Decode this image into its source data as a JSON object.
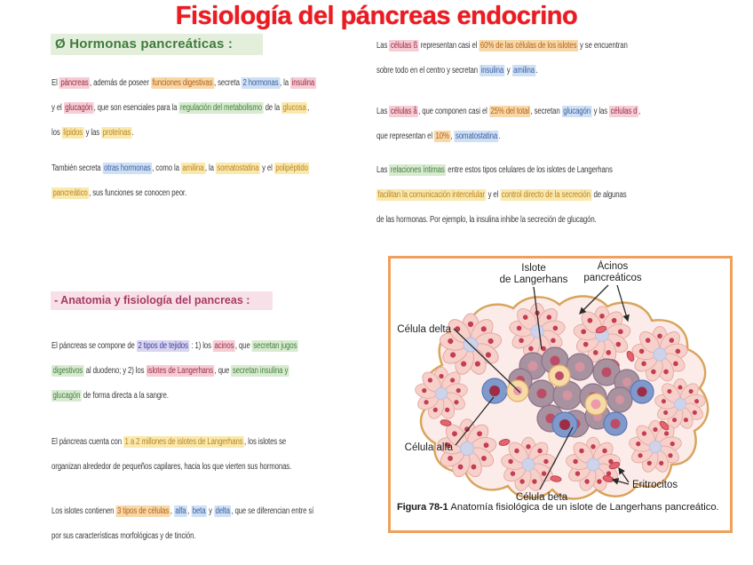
{
  "page": {
    "title": "Fisiología del páncreas endocrino"
  },
  "colors": {
    "title_red": "#ec1b22",
    "figure_border_orange": "#efa05c",
    "highlight_pink": "#f6cdd5",
    "highlight_orange": "#f8d8a8",
    "highlight_yellow": "#f9e9ad",
    "highlight_blue": "#cfe0f4",
    "highlight_green": "#d8ebd1",
    "highlight_purple": "#d8d5f0",
    "acinus_pink": "#f7d0ca",
    "islet_beta_gray": "#a8929f",
    "islet_alpha_blue": "#7f99cc",
    "islet_delta_cream": "#f8daa5",
    "erythrocyte_red": "#e4646e"
  },
  "left": {
    "header1": "Ø Hormonas pancreáticas :",
    "header2": "- Anatomia y fisiología del pancreas :",
    "p1": [
      {
        "t": "El "
      },
      {
        "t": "páncreas",
        "s": "pink"
      },
      {
        "t": ", además de poseer "
      },
      {
        "t": "funciones digestivas",
        "s": "orange"
      },
      {
        "t": ", secreta "
      },
      {
        "t": "2 hormonas",
        "s": "blue"
      },
      {
        "t": ", la "
      },
      {
        "t": "insulina",
        "s": "pink"
      },
      {
        "br": true
      },
      {
        "t": "y el "
      },
      {
        "t": "glucagón",
        "s": "pink"
      },
      {
        "t": ", que son esenciales para la "
      },
      {
        "t": "regulación del metabolismo",
        "s": "green"
      },
      {
        "t": " de la "
      },
      {
        "t": "glucosa",
        "s": "yellow"
      },
      {
        "t": ","
      },
      {
        "br": true
      },
      {
        "t": "los "
      },
      {
        "t": "lípidos",
        "s": "yellow"
      },
      {
        "t": " y las "
      },
      {
        "t": "proteínas",
        "s": "yellow"
      },
      {
        "t": "."
      }
    ],
    "p2": [
      {
        "t": "También secreta "
      },
      {
        "t": "otras hormonas",
        "s": "blue"
      },
      {
        "t": ", como la "
      },
      {
        "t": "amilina",
        "s": "yellow"
      },
      {
        "t": ", la "
      },
      {
        "t": "somatostatina",
        "s": "yellow"
      },
      {
        "t": " y el "
      },
      {
        "t": "polipéptido",
        "s": "yellow"
      },
      {
        "br": true
      },
      {
        "t": "pancreático",
        "s": "yellow"
      },
      {
        "t": ", sus funciones se conocen peor."
      }
    ],
    "p3": [
      {
        "t": "El páncreas se compone de "
      },
      {
        "t": "2 tipos de tejidos",
        "s": "purple"
      },
      {
        "t": " : 1) los "
      },
      {
        "t": "acinos",
        "s": "pink"
      },
      {
        "t": ", que "
      },
      {
        "t": "secretan jugos",
        "s": "green"
      },
      {
        "br": true
      },
      {
        "t": "digestivos",
        "s": "green"
      },
      {
        "t": " al duodeno; y 2) los "
      },
      {
        "t": "islotes de Langerhans",
        "s": "pink"
      },
      {
        "t": ", que "
      },
      {
        "t": "secretan insulina y",
        "s": "green"
      },
      {
        "br": true
      },
      {
        "t": "glucagón",
        "s": "green"
      },
      {
        "t": " de forma directa a la sangre."
      }
    ],
    "p4": [
      {
        "t": "El páncreas cuenta con "
      },
      {
        "t": "1 a 2 millones de islotes de Langerhans",
        "s": "yellow"
      },
      {
        "t": ", los islotes se"
      },
      {
        "br": true
      },
      {
        "t": "organizan alrededor de pequeños capilares, hacia los que vierten sus hormonas."
      }
    ],
    "p5": [
      {
        "t": "Los islotes contienen "
      },
      {
        "t": "3 tipos de células",
        "s": "orange"
      },
      {
        "t": ", "
      },
      {
        "t": "alfa",
        "s": "blue"
      },
      {
        "t": ", "
      },
      {
        "t": "beta",
        "s": "blue"
      },
      {
        "t": " y "
      },
      {
        "t": "delta",
        "s": "blue"
      },
      {
        "t": ", que se diferencian entre sí"
      },
      {
        "br": true
      },
      {
        "t": "por sus características morfológicas y de tinción."
      }
    ]
  },
  "right": {
    "p1": [
      {
        "t": "Las "
      },
      {
        "t": "células ß",
        "s": "pink"
      },
      {
        "t": " representan casi el "
      },
      {
        "t": "60% de las células de los islotes",
        "s": "orange"
      },
      {
        "t": " y se encuentran"
      },
      {
        "br": true
      },
      {
        "t": "sobre todo en el centro y secretan "
      },
      {
        "t": "insulina",
        "s": "blue"
      },
      {
        "t": " y "
      },
      {
        "t": "amilina",
        "s": "blue"
      },
      {
        "t": "."
      }
    ],
    "p2": [
      {
        "t": "Las "
      },
      {
        "t": "células å",
        "s": "pink"
      },
      {
        "t": ", que componen casi el "
      },
      {
        "t": "25% del total",
        "s": "orange"
      },
      {
        "t": ", secretan "
      },
      {
        "t": "glucagón",
        "s": "blue"
      },
      {
        "t": " y las "
      },
      {
        "t": "células d",
        "s": "pink"
      },
      {
        "t": ","
      },
      {
        "br": true
      },
      {
        "t": "que representan el "
      },
      {
        "t": "10%",
        "s": "orange"
      },
      {
        "t": ", "
      },
      {
        "t": "somatostatina",
        "s": "blue"
      },
      {
        "t": "."
      }
    ],
    "p3": [
      {
        "t": "Las "
      },
      {
        "t": "relaciones íntimas",
        "s": "green"
      },
      {
        "t": " entre estos tipos celulares de los islotes de Langerhans"
      },
      {
        "br": true
      },
      {
        "t": "facilitan la comunicación intercelular",
        "s": "yellow"
      },
      {
        "t": " y el "
      },
      {
        "t": "control directo de la secreción",
        "s": "yellow"
      },
      {
        "t": " de algunas"
      },
      {
        "br": true
      },
      {
        "t": "de las hormonas. Por ejemplo, la insulina inhibe la secreción de glucagón."
      }
    ]
  },
  "figure": {
    "labels": {
      "islote_line1": "Islote",
      "islote_line2": "de Langerhans",
      "acinos_line1": "Ácinos",
      "acinos_line2": "pancreáticos",
      "celula_delta": "Célula delta",
      "celula_alfa": "Célula alfa",
      "celula_beta": "Célula beta",
      "eritrocitos": "Eritrocitos"
    },
    "caption_bold": "Figura 78-1 ",
    "caption_text": "Anatomía fisiológica de un islote de Langerhans pancreático."
  }
}
